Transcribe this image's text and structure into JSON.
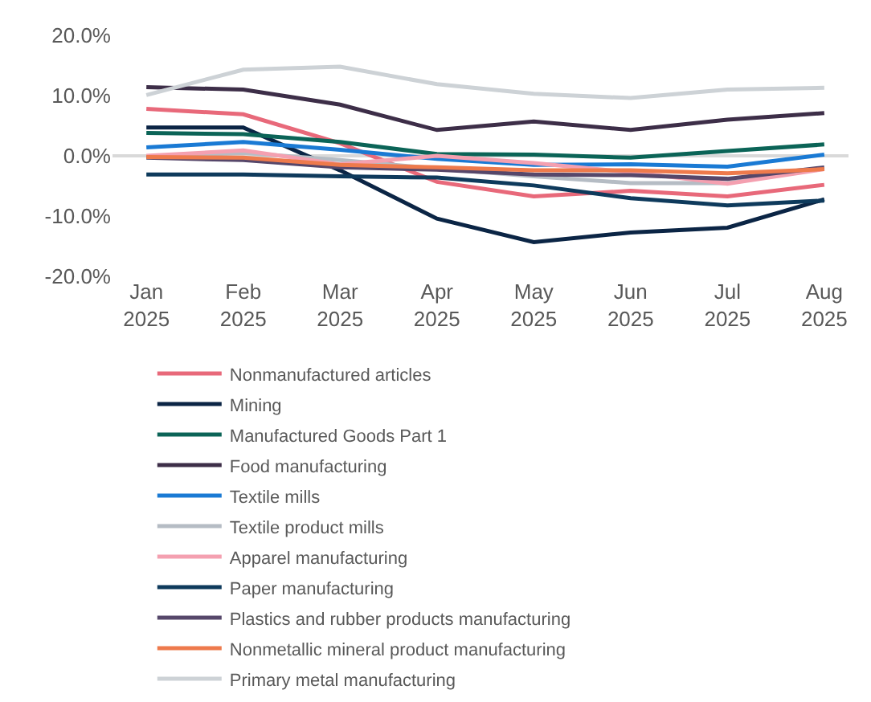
{
  "chart_data": {
    "type": "line",
    "categories": [
      "Jan\n2025",
      "Feb\n2025",
      "Mar\n2025",
      "Apr\n2025",
      "May\n2025",
      "Jun\n2025",
      "Jul\n2025",
      "Aug\n2025"
    ],
    "series": [
      {
        "name": "Nonmanufactured articles",
        "color": "#e8697a",
        "values": [
          7.8,
          6.9,
          2.1,
          -4.3,
          -6.7,
          -5.8,
          -6.7,
          -4.8
        ]
      },
      {
        "name": "Mining",
        "color": "#0b2545",
        "values": [
          4.7,
          4.7,
          -2.4,
          -10.4,
          -14.3,
          -12.7,
          -11.9,
          -7.2
        ]
      },
      {
        "name": "Manufactured Goods Part 1",
        "color": "#0b6457",
        "values": [
          3.8,
          3.6,
          2.3,
          0.3,
          0.2,
          -0.3,
          0.8,
          1.9
        ]
      },
      {
        "name": "Food manufacturing",
        "color": "#3d2e48",
        "values": [
          11.4,
          11.0,
          8.5,
          4.3,
          5.7,
          4.3,
          6.0,
          7.1
        ]
      },
      {
        "name": "Textile mills",
        "color": "#1a7ad4",
        "values": [
          1.4,
          2.3,
          1.0,
          -0.5,
          -1.5,
          -1.4,
          -1.8,
          0.2
        ]
      },
      {
        "name": "Textile product mills",
        "color": "#b5bcc4",
        "values": [
          -0.2,
          0.5,
          -0.7,
          -2.1,
          -3.4,
          -4.5,
          -4.5,
          -2.1
        ]
      },
      {
        "name": "Apparel manufacturing",
        "color": "#f4a0b0",
        "values": [
          0.0,
          0.9,
          -1.4,
          0.0,
          -1.2,
          -2.7,
          -4.6,
          -2.2
        ]
      },
      {
        "name": "Paper manufacturing",
        "color": "#0e3a5c",
        "values": [
          -3.1,
          -3.1,
          -3.4,
          -3.6,
          -4.9,
          -7.0,
          -8.2,
          -7.4
        ]
      },
      {
        "name": "Plastics and rubber products manufacturing",
        "color": "#56476a",
        "values": [
          -0.3,
          -0.7,
          -1.9,
          -2.3,
          -3.1,
          -3.2,
          -3.8,
          -1.9
        ]
      },
      {
        "name": "Nonmetallic mineral product manufacturing",
        "color": "#ee7a4c",
        "values": [
          -0.2,
          -0.3,
          -1.5,
          -1.9,
          -2.4,
          -2.4,
          -2.9,
          -2.2
        ]
      },
      {
        "name": "Primary metal manufacturing",
        "color": "#cdd2d6",
        "values": [
          10.1,
          14.3,
          14.8,
          11.9,
          10.3,
          9.6,
          11.0,
          11.3
        ]
      }
    ],
    "ylim": [
      -20,
      20
    ],
    "yticks": [
      {
        "value": -20,
        "label": "-20.0%"
      },
      {
        "value": -10,
        "label": "-10.0%"
      },
      {
        "value": 0,
        "label": "0.0%"
      },
      {
        "value": 10,
        "label": "10.0%"
      },
      {
        "value": 20,
        "label": "20.0%"
      }
    ],
    "ref_lines": [
      {
        "axis": "y",
        "value": 0,
        "color": "#d9d9d9"
      }
    ],
    "grid": false,
    "legend": "bottom",
    "marker": "none",
    "line_style": "solid"
  }
}
